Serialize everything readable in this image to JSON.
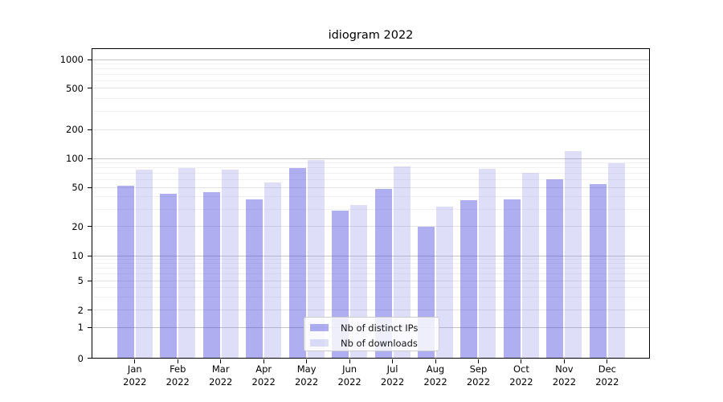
{
  "chart_data": {
    "type": "bar",
    "title": "idiogram 2022",
    "xlabel": "",
    "ylabel": "",
    "yscale": "symlog",
    "grid": true,
    "legend_position": "lower center",
    "y_ticks": [
      0,
      1,
      2,
      5,
      10,
      20,
      50,
      100,
      200,
      500,
      1000
    ],
    "y_minor_gridlines": [
      3,
      4,
      6,
      7,
      8,
      9,
      30,
      40,
      60,
      70,
      80,
      90,
      300,
      400,
      600,
      700,
      800,
      900
    ],
    "ylim": [
      0,
      1400
    ],
    "categories": [
      "Jan 2022",
      "Feb 2022",
      "Mar 2022",
      "Apr 2022",
      "May 2022",
      "Jun 2022",
      "Jul 2022",
      "Aug 2022",
      "Sep 2022",
      "Oct 2022",
      "Nov 2022",
      "Dec 2022"
    ],
    "series": [
      {
        "name": "Nb of distinct IPs",
        "color": "rgba(75,75,225,0.45)",
        "color_on_white": "#aeaef1",
        "values": [
          52,
          43,
          45,
          38,
          80,
          29,
          48,
          20,
          37,
          38,
          61,
          54
        ]
      },
      {
        "name": "Nb of downloads",
        "color": "rgba(135,135,235,0.28)",
        "color_on_white": "#dddcf9",
        "values": [
          77,
          79,
          77,
          56,
          97,
          33,
          83,
          32,
          78,
          71,
          120,
          89
        ]
      }
    ],
    "colors": {
      "major_gridline": "#c4c4c4",
      "labeled_gridline": "#e4e4e4",
      "minor_gridline": "#f1f1f1",
      "axis": "#000000",
      "legend_border": "#cccccc"
    }
  }
}
